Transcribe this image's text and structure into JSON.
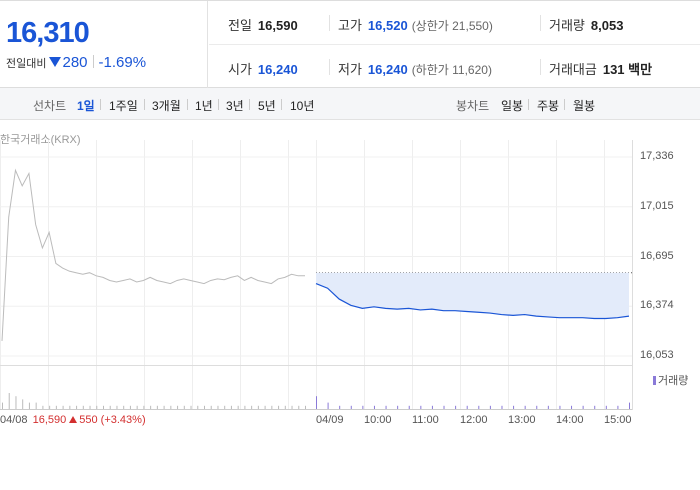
{
  "price": {
    "current": "16,310",
    "change_label": "전일대비",
    "change": "280",
    "change_pct": "-1.69%"
  },
  "quote": {
    "prev_close_label": "전일",
    "prev_close": "16,590",
    "high_label": "고가",
    "high": "16,520",
    "upper_limit": "(상한가 21,550)",
    "volume_label": "거래량",
    "volume": "8,053",
    "open_label": "시가",
    "open": "16,240",
    "low_label": "저가",
    "low": "16,240",
    "lower_limit": "(하한가 11,620)",
    "amount_label": "거래대금",
    "amount": "131",
    "amount_unit": "백만"
  },
  "tabs": {
    "line_title": "선차트",
    "line_items": [
      "1일",
      "1주일",
      "3개월",
      "1년",
      "3년",
      "5년",
      "10년"
    ],
    "candle_title": "봉차트",
    "candle_items": [
      "일봉",
      "주봉",
      "월봉"
    ]
  },
  "colors": {
    "accent": "#1a55d6",
    "up": "#d32f2f",
    "prev_line": "#bbbbbb",
    "area_fill": "#e3ebfa",
    "volume": "#8a7ad8"
  },
  "chart_data": {
    "type": "line",
    "source": "한국거래소(KRX)",
    "ylim": [
      16053,
      17336
    ],
    "yticks": [
      "17,336",
      "17,015",
      "16,695",
      "16,374",
      "16,053"
    ],
    "xticks": [
      "04/09",
      "10:00",
      "11:00",
      "12:00",
      "13:00",
      "14:00",
      "15:00"
    ],
    "reference_price": 16590,
    "base_info": {
      "date": "04/08",
      "price": "16,590",
      "change": "550",
      "change_pct": "(+3.43%)"
    },
    "volume_legend": "거래량",
    "series": [
      {
        "day": "04/08",
        "values": [
          16150,
          16950,
          17250,
          17150,
          17230,
          16900,
          16750,
          16850,
          16650,
          16620,
          16600,
          16590,
          16580,
          16590,
          16570,
          16560,
          16540,
          16530,
          16540,
          16550,
          16530,
          16540,
          16560,
          16540,
          16530,
          16520,
          16540,
          16550,
          16540,
          16530,
          16520,
          16540,
          16550,
          16545,
          16560,
          16570,
          16540,
          16560,
          16540,
          16530,
          16520,
          16550,
          16560,
          16580,
          16570,
          16570
        ]
      },
      {
        "day": "04/09",
        "values": [
          16520,
          16490,
          16420,
          16380,
          16360,
          16370,
          16360,
          16355,
          16360,
          16350,
          16355,
          16345,
          16345,
          16340,
          16335,
          16330,
          16320,
          16315,
          16320,
          16310,
          16305,
          16300,
          16300,
          16300,
          16295,
          16295,
          16300,
          16310
        ]
      }
    ],
    "volumes_0408": [
      2,
      5,
      4,
      3,
      2,
      2,
      1,
      1,
      1,
      1,
      1,
      1,
      1,
      1,
      1,
      1,
      1,
      1,
      1,
      1,
      1,
      1,
      1,
      1,
      1,
      1,
      1,
      1,
      1,
      1,
      1,
      1,
      1,
      1,
      1,
      1,
      1,
      1,
      1,
      1,
      1,
      1,
      1,
      1,
      1,
      1
    ],
    "volumes_0409": [
      4,
      2,
      1,
      1,
      1,
      1,
      1,
      1,
      1,
      1,
      1,
      1,
      1,
      1,
      1,
      1,
      1,
      1,
      1,
      1,
      1,
      1,
      1,
      1,
      1,
      1,
      1,
      2
    ]
  }
}
